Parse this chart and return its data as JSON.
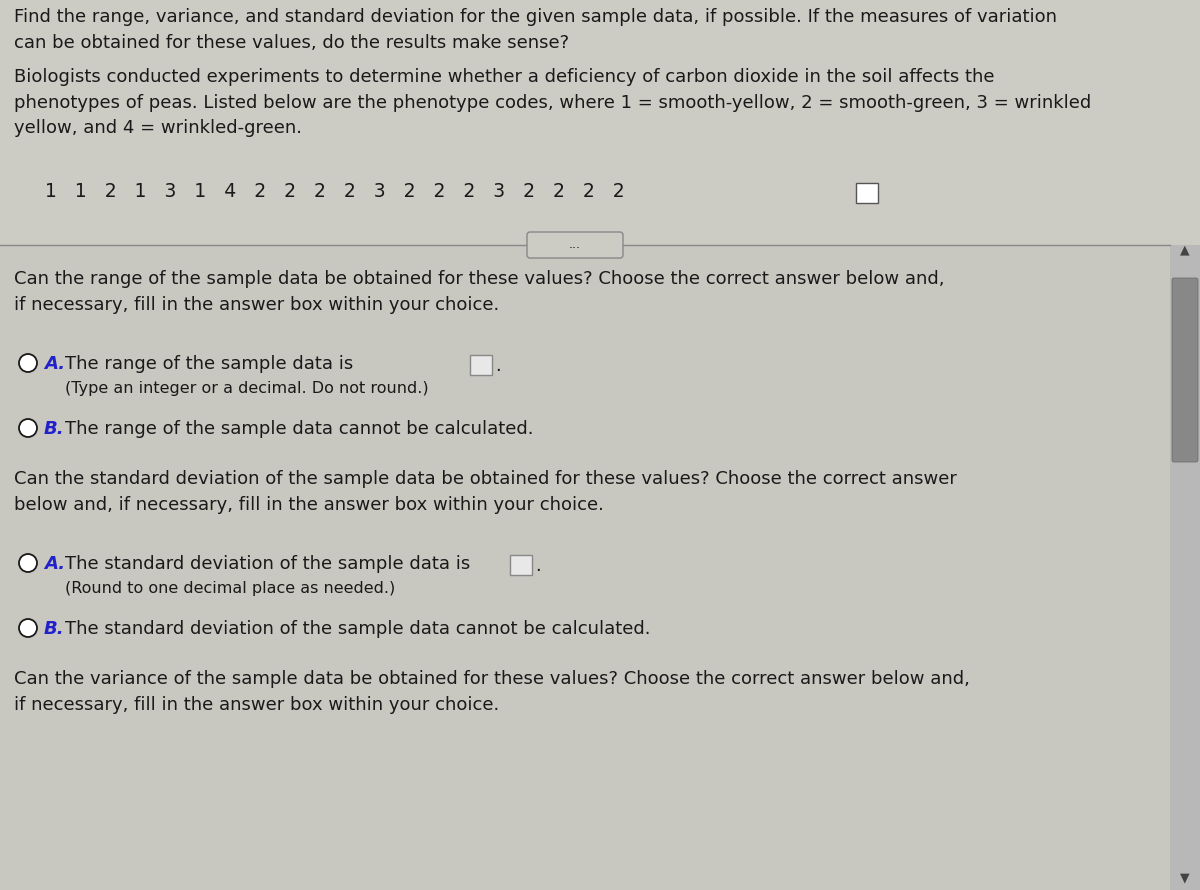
{
  "bg_color": "#cccbc4",
  "text_color": "#1a1a1a",
  "blue_color": "#2222cc",
  "title_text": "Find the range, variance, and standard deviation for the given sample data, if possible. If the measures of variation\ncan be obtained for these values, do the results make sense?",
  "bio_text": "Biologists conducted experiments to determine whether a deficiency of carbon dioxide in the soil affects the\nphenotypes of peas. Listed below are the phenotype codes, where 1 = smooth-yellow, 2 = smooth-green, 3 = wrinkled\nyellow, and 4 = wrinkled-green.",
  "data_sequence": "1   1   2   1   3   1   4   2   2   2   2   3   2   2   2   3   2   2   2   2",
  "dots_text": "...",
  "section1_q": "Can the range of the sample data be obtained for these values? Choose the correct answer below and,\nif necessary, fill in the answer box within your choice.",
  "optA1_text": "The range of the sample data is",
  "optA1_sub": "(Type an integer or a decimal. Do not round.)",
  "optB1_text": "The range of the sample data cannot be calculated.",
  "section2_q": "Can the standard deviation of the sample data be obtained for these values? Choose the correct answer\nbelow and, if necessary, fill in the answer box within your choice.",
  "optA2_text": "The standard deviation of the sample data is",
  "optA2_sub": "(Round to one decimal place as needed.)",
  "optB2_text": "The standard deviation of the sample data cannot be calculated.",
  "section3_q": "Can the variance of the sample data be obtained for these values? Choose the correct answer below and,\nif necessary, fill in the answer box within your choice."
}
